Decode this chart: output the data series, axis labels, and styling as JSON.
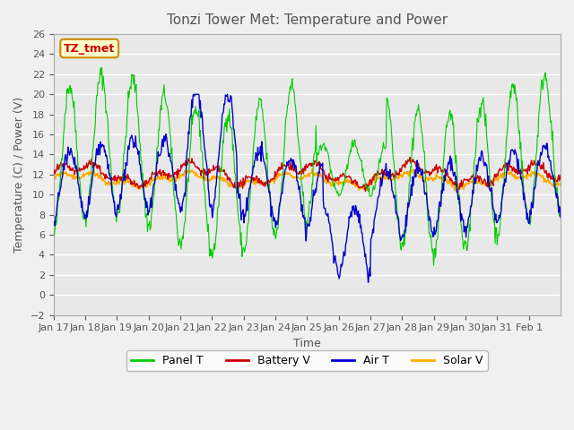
{
  "title": "Tonzi Tower Met: Temperature and Power",
  "xlabel": "Time",
  "ylabel": "Temperature (C) / Power (V)",
  "ylim": [
    -2,
    26
  ],
  "yticks": [
    -2,
    0,
    2,
    4,
    6,
    8,
    10,
    12,
    14,
    16,
    18,
    20,
    22,
    24,
    26
  ],
  "x_labels": [
    "Jan 17",
    "Jan 18",
    "Jan 19",
    "Jan 20",
    "Jan 21",
    "Jan 22",
    "Jan 23",
    "Jan 24",
    "Jan 25",
    "Jan 26",
    "Jan 27",
    "Jan 28",
    "Jan 29",
    "Jan 30",
    "Jan 31",
    "Feb 1"
  ],
  "tz_label": "TZ_tmet",
  "legend_labels": [
    "Panel T",
    "Battery V",
    "Air T",
    "Solar V"
  ],
  "legend_colors": [
    "#00cc00",
    "#cc0000",
    "#0000cc",
    "#ffaa00"
  ],
  "bg_color": "#e8e8e8",
  "grid_color": "#ffffff",
  "n_days": 16,
  "pts_per_day": 48
}
